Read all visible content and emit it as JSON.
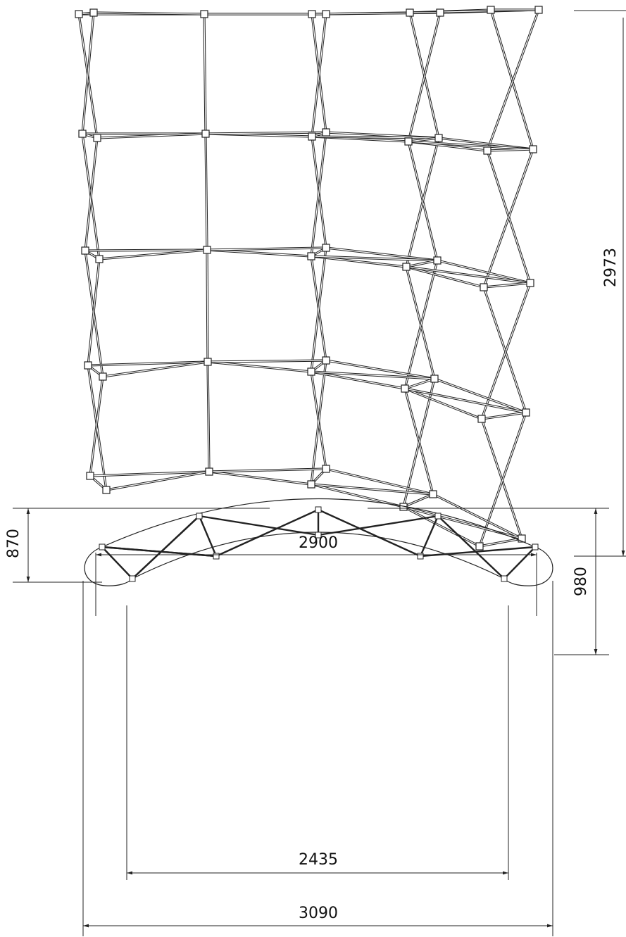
{
  "dimensions": {
    "frame_height": "2973",
    "chord_width": "2900",
    "depth_inner": "870",
    "depth_outer": "980",
    "inner_width": "2435",
    "outer_width": "3090"
  }
}
